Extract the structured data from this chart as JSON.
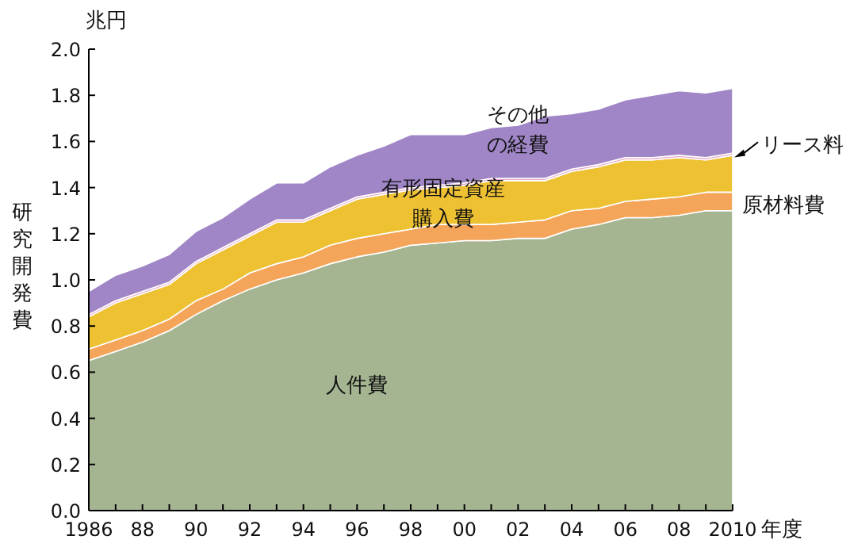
{
  "chart_data": {
    "type": "area",
    "stacked": true,
    "ylabel": "研究開発費",
    "xlabel": "年度",
    "annotations": [
      "兆円"
    ],
    "x": [
      1986,
      1987,
      1988,
      1989,
      1990,
      1991,
      1992,
      1993,
      1994,
      1995,
      1996,
      1997,
      1998,
      1999,
      2000,
      2001,
      2002,
      2003,
      2004,
      2005,
      2006,
      2007,
      2008,
      2009,
      2010
    ],
    "xlim": [
      1986,
      2010
    ],
    "xticks": [
      1986,
      {
        "value": 1987,
        "label": null
      },
      {
        "value": 1988,
        "label": "88"
      },
      {
        "value": 1989,
        "label": null
      },
      {
        "value": 1990,
        "label": "90"
      },
      {
        "value": 1991,
        "label": null
      },
      {
        "value": 1992,
        "label": "92"
      },
      {
        "value": 1993,
        "label": null
      },
      {
        "value": 1994,
        "label": "94"
      },
      {
        "value": 1995,
        "label": null
      },
      {
        "value": 1996,
        "label": "96"
      },
      {
        "value": 1997,
        "label": null
      },
      {
        "value": 1998,
        "label": "98"
      },
      {
        "value": 1999,
        "label": null
      },
      {
        "value": 2000,
        "label": "00"
      },
      {
        "value": 2001,
        "label": null
      },
      {
        "value": 2002,
        "label": "02"
      },
      {
        "value": 2003,
        "label": null
      },
      {
        "value": 2004,
        "label": "04"
      },
      {
        "value": 2005,
        "label": null
      },
      {
        "value": 2006,
        "label": "06"
      },
      {
        "value": 2007,
        "label": null
      },
      {
        "value": 2008,
        "label": "08"
      },
      {
        "value": 2009,
        "label": null
      },
      2010
    ],
    "ylim": [
      0,
      2.0
    ],
    "yticks": [
      {
        "value": 0,
        "label": "0.0"
      },
      0.2,
      0.4,
      0.6,
      0.8,
      {
        "value": 1,
        "label": "1.0"
      },
      1.2,
      1.4,
      1.6,
      1.8,
      {
        "value": 2,
        "label": "2.0"
      }
    ],
    "grid": false,
    "series": [
      {
        "name": "人件費",
        "color": "#a5b592",
        "values": [
          0.65,
          0.69,
          0.73,
          0.78,
          0.85,
          0.91,
          0.96,
          1.0,
          1.03,
          1.07,
          1.1,
          1.12,
          1.15,
          1.16,
          1.17,
          1.17,
          1.18,
          1.18,
          1.22,
          1.24,
          1.27,
          1.27,
          1.28,
          1.3,
          1.3
        ]
      },
      {
        "name": "原材料費",
        "color": "#f5a55a",
        "values": [
          0.05,
          0.05,
          0.05,
          0.05,
          0.06,
          0.05,
          0.07,
          0.07,
          0.07,
          0.08,
          0.08,
          0.08,
          0.07,
          0.08,
          0.07,
          0.07,
          0.07,
          0.08,
          0.08,
          0.07,
          0.07,
          0.08,
          0.08,
          0.08,
          0.08
        ]
      },
      {
        "name": "有形固定資産購入費",
        "color": "#eec132",
        "values": [
          0.14,
          0.16,
          0.16,
          0.15,
          0.16,
          0.17,
          0.16,
          0.18,
          0.15,
          0.15,
          0.17,
          0.17,
          0.17,
          0.16,
          0.17,
          0.19,
          0.18,
          0.17,
          0.17,
          0.18,
          0.18,
          0.17,
          0.17,
          0.14,
          0.16
        ]
      },
      {
        "name": "リース料",
        "color": "#e6a6c8",
        "values": [
          0.01,
          0.01,
          0.01,
          0.01,
          0.01,
          0.01,
          0.01,
          0.01,
          0.01,
          0.01,
          0.01,
          0.01,
          0.01,
          0.01,
          0.01,
          0.01,
          0.01,
          0.01,
          0.01,
          0.01,
          0.01,
          0.01,
          0.01,
          0.01,
          0.01
        ]
      },
      {
        "name": "その他の経費",
        "color": "#a086c6",
        "values": [
          0.1,
          0.11,
          0.11,
          0.12,
          0.13,
          0.13,
          0.15,
          0.16,
          0.16,
          0.18,
          0.18,
          0.2,
          0.23,
          0.22,
          0.21,
          0.22,
          0.23,
          0.27,
          0.24,
          0.24,
          0.25,
          0.27,
          0.28,
          0.28,
          0.28
        ]
      }
    ]
  }
}
